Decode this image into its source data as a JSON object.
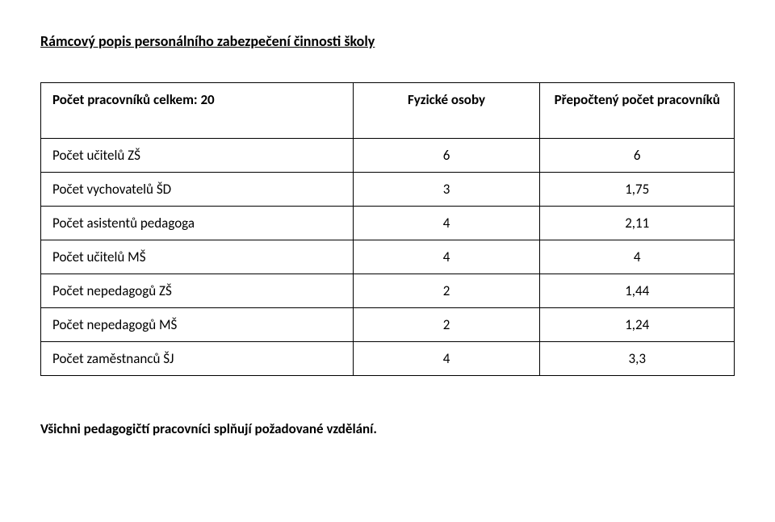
{
  "title": "Rámcový popis personálního zabezpečení činnosti školy",
  "table": {
    "headers": {
      "col0": "Počet pracovníků celkem: 20",
      "col1": "Fyzické osoby",
      "col2": "Přepočtený počet pracovníků"
    },
    "rows": [
      {
        "label": "Počet učitelů ZŠ",
        "v1": "6",
        "v2": "6"
      },
      {
        "label": "Počet vychovatelů ŠD",
        "v1": "3",
        "v2": "1,75"
      },
      {
        "label": "Počet asistentů pedagoga",
        "v1": "4",
        "v2": "2,11"
      },
      {
        "label": "Počet učitelů MŠ",
        "v1": "4",
        "v2": "4"
      },
      {
        "label": "Počet nepedagogů ZŠ",
        "v1": "2",
        "v2": "1,44"
      },
      {
        "label": "Počet nepedagogů MŠ",
        "v1": "2",
        "v2": "1,24"
      },
      {
        "label": "Počet zaměstnanců ŠJ",
        "v1": "4",
        "v2": "3,3"
      }
    ]
  },
  "footer_note": "Všichni pedagogičtí pracovníci splňují požadované vzdělání."
}
